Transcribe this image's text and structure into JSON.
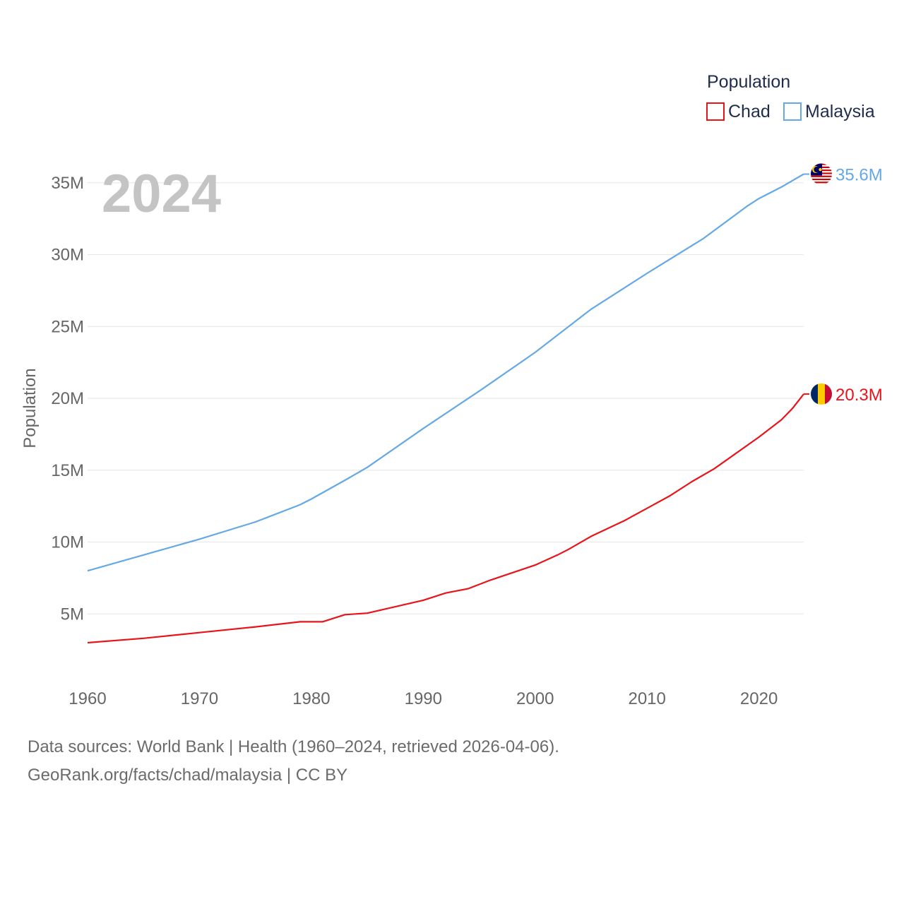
{
  "chart_data": {
    "type": "line",
    "current_year_label": "2024",
    "ylabel": "Population",
    "ylim": [
      0,
      36000000
    ],
    "xlim": [
      1960,
      2024
    ],
    "y_ticks": [
      {
        "value": 5000000,
        "label": "5M"
      },
      {
        "value": 10000000,
        "label": "10M"
      },
      {
        "value": 15000000,
        "label": "15M"
      },
      {
        "value": 20000000,
        "label": "20M"
      },
      {
        "value": 25000000,
        "label": "25M"
      },
      {
        "value": 30000000,
        "label": "30M"
      },
      {
        "value": 35000000,
        "label": "35M"
      }
    ],
    "x_ticks": [
      {
        "value": 1960,
        "label": "1960"
      },
      {
        "value": 1970,
        "label": "1970"
      },
      {
        "value": 1980,
        "label": "1980"
      },
      {
        "value": 1990,
        "label": "1990"
      },
      {
        "value": 2000,
        "label": "2000"
      },
      {
        "value": 2010,
        "label": "2010"
      },
      {
        "value": 2020,
        "label": "2020"
      }
    ],
    "legend": {
      "title": "Population",
      "items": [
        {
          "label": "Chad",
          "color": "#e8141a"
        },
        {
          "label": "Malaysia",
          "color": "#64a8e6"
        }
      ]
    },
    "series": [
      {
        "name": "Chad",
        "color": "#e8141a",
        "end_label": "20.3M",
        "flag": "chad-flag",
        "points": [
          [
            1960,
            3000000
          ],
          [
            1965,
            3300000
          ],
          [
            1970,
            3700000
          ],
          [
            1975,
            4100000
          ],
          [
            1979,
            4450000
          ],
          [
            1981,
            4450000
          ],
          [
            1983,
            4950000
          ],
          [
            1985,
            5050000
          ],
          [
            1990,
            5950000
          ],
          [
            1992,
            6450000
          ],
          [
            1994,
            6750000
          ],
          [
            1996,
            7350000
          ],
          [
            2000,
            8400000
          ],
          [
            2002,
            9100000
          ],
          [
            2003,
            9500000
          ],
          [
            2005,
            10400000
          ],
          [
            2008,
            11500000
          ],
          [
            2010,
            12350000
          ],
          [
            2012,
            13200000
          ],
          [
            2014,
            14200000
          ],
          [
            2016,
            15100000
          ],
          [
            2018,
            16200000
          ],
          [
            2020,
            17300000
          ],
          [
            2022,
            18500000
          ],
          [
            2023,
            19300000
          ],
          [
            2024,
            20300000
          ]
        ]
      },
      {
        "name": "Malaysia",
        "color": "#64a8e6",
        "end_label": "35.6M",
        "flag": "malaysia-flag",
        "points": [
          [
            1960,
            8000000
          ],
          [
            1965,
            9100000
          ],
          [
            1970,
            10200000
          ],
          [
            1975,
            11400000
          ],
          [
            1979,
            12600000
          ],
          [
            1980,
            13000000
          ],
          [
            1983,
            14300000
          ],
          [
            1985,
            15200000
          ],
          [
            1990,
            17900000
          ],
          [
            1995,
            20500000
          ],
          [
            2000,
            23200000
          ],
          [
            2005,
            26200000
          ],
          [
            2010,
            28700000
          ],
          [
            2015,
            31100000
          ],
          [
            2019,
            33400000
          ],
          [
            2020,
            33900000
          ],
          [
            2022,
            34700000
          ],
          [
            2024,
            35600000
          ]
        ]
      }
    ]
  },
  "source": {
    "line1": "Data sources: World Bank | Health (1960–2024, retrieved 2026-04-06).",
    "line2": "GeoRank.org/facts/chad/malaysia | CC BY"
  }
}
